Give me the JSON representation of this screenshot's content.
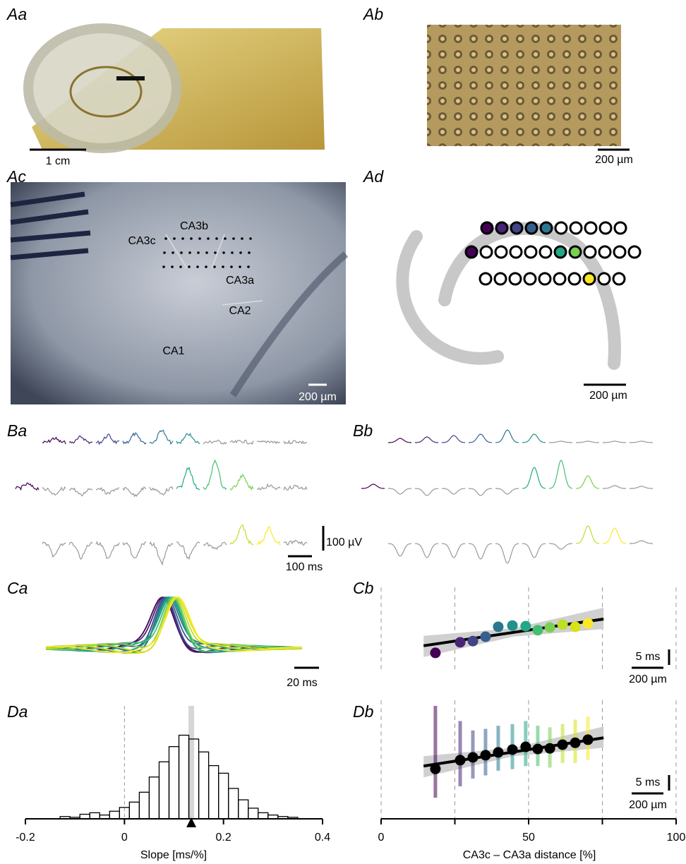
{
  "panel_labels": [
    "Aa",
    "Ab",
    "Ac",
    "Ad",
    "Ba",
    "Bb",
    "Ca",
    "Cb",
    "Da",
    "Db"
  ],
  "photos": {
    "aa_scale": "1 cm",
    "ab_scale": "200 µm",
    "ac_scale": "200 µm",
    "ad_scale": "200 µm",
    "regions": [
      "CA3c",
      "CA3b",
      "CA3a",
      "CA2",
      "CA1"
    ]
  },
  "traces": {
    "v_scale": "100 µV",
    "t_scale": "100 ms",
    "ca_scale": "20 ms"
  },
  "chart_data": [
    {
      "type": "histogram",
      "xlabel": "Slope [ms/%]",
      "bins": [
        -0.13,
        -0.11,
        -0.09,
        -0.07,
        -0.05,
        -0.03,
        -0.01,
        0.01,
        0.03,
        0.05,
        0.07,
        0.09,
        0.11,
        0.13,
        0.15,
        0.17,
        0.19,
        0.21,
        0.23,
        0.25,
        0.27,
        0.29,
        0.31,
        0.33,
        0.35
      ],
      "counts": [
        3,
        2,
        6,
        8,
        5,
        10,
        15,
        22,
        35,
        55,
        75,
        95,
        110,
        105,
        88,
        70,
        60,
        40,
        25,
        14,
        8,
        5,
        3,
        2
      ],
      "xlim": [
        -0.2,
        0.4
      ],
      "xticks": [
        -0.2,
        0,
        0.2,
        0.4
      ],
      "ylim": [
        0,
        130
      ],
      "ref_line": 0,
      "marker": 0.135,
      "color": "#000000"
    },
    {
      "type": "scatter",
      "x": [
        18.4,
        26.8,
        31.1,
        35.4,
        39.7,
        44.5,
        49,
        53.1,
        57.2,
        61.5,
        65.8,
        70.1
      ],
      "y": [
        5.7,
        9.1,
        9.5,
        10.9,
        14.1,
        14.5,
        14.3,
        13,
        13.9,
        14.8,
        14.1,
        15.2
      ],
      "colors": [
        "#440154",
        "#482475",
        "#414487",
        "#355f8d",
        "#2a788e",
        "#21918c",
        "#22a884",
        "#44bf70",
        "#7ad151",
        "#bddf26",
        "#d8e219",
        "#fde725"
      ],
      "xlim": [
        0,
        100
      ],
      "ylim": [
        0,
        25
      ],
      "vlines": [
        0,
        25,
        50,
        75,
        100
      ],
      "fit": {
        "x": [
          14.4,
          75.4
        ],
        "y": [
          8,
          16.6
        ]
      },
      "scale_y": "5 ms",
      "scale_x": "200 µm"
    },
    {
      "type": "scatter",
      "xlabel": "CA3c – CA3a distance [%]",
      "x": [
        18.4,
        26.8,
        31.1,
        35.4,
        39.7,
        44.5,
        49,
        53.1,
        57.2,
        61.5,
        65.8,
        70.1
      ],
      "y": [
        16.1,
        18.9,
        19.8,
        20.5,
        21.4,
        22.3,
        23.2,
        22.5,
        22.7,
        23.9,
        24.5,
        25.5
      ],
      "lo": [
        6.8,
        10.5,
        13,
        14,
        15.5,
        16,
        17,
        17,
        16.5,
        18,
        18,
        19
      ],
      "hi": [
        36.4,
        31.5,
        28.5,
        29,
        30,
        30.5,
        31.5,
        30,
        29.5,
        30.5,
        32,
        33
      ],
      "colors": [
        "#440154",
        "#482475",
        "#414487",
        "#355f8d",
        "#2a788e",
        "#21918c",
        "#22a884",
        "#44bf70",
        "#7ad151",
        "#bddf26",
        "#d8e219",
        "#fde725"
      ],
      "xlim": [
        0,
        100
      ],
      "xticks": [
        0,
        50,
        100
      ],
      "ylim": [
        0,
        36.4
      ],
      "vlines": [
        0,
        25,
        50,
        75,
        100
      ],
      "fit": {
        "x": [
          14.4,
          75.4
        ],
        "y": [
          17,
          26.1
        ]
      },
      "scale_y": "5 ms",
      "scale_x": "200 µm"
    }
  ]
}
